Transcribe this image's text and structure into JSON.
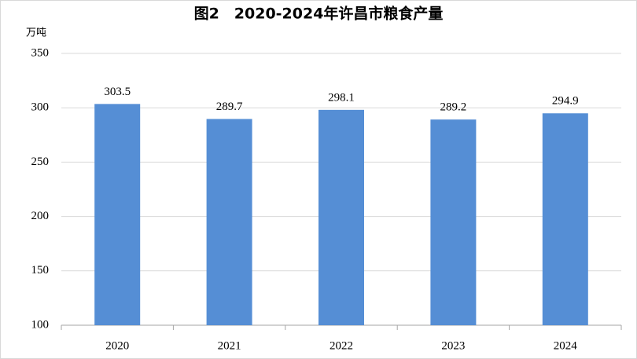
{
  "chart_data": {
    "type": "bar",
    "title": "图2　2020-2024年许昌市粮食产量",
    "y_label": "万吨",
    "categories": [
      "2020",
      "2021",
      "2022",
      "2023",
      "2024"
    ],
    "values": [
      303.5,
      289.7,
      298.1,
      289.2,
      294.9
    ],
    "color": "#558ed5",
    "ylim": [
      100,
      350
    ],
    "yticks": [
      100,
      150,
      200,
      250,
      300,
      350
    ],
    "grid": true
  }
}
